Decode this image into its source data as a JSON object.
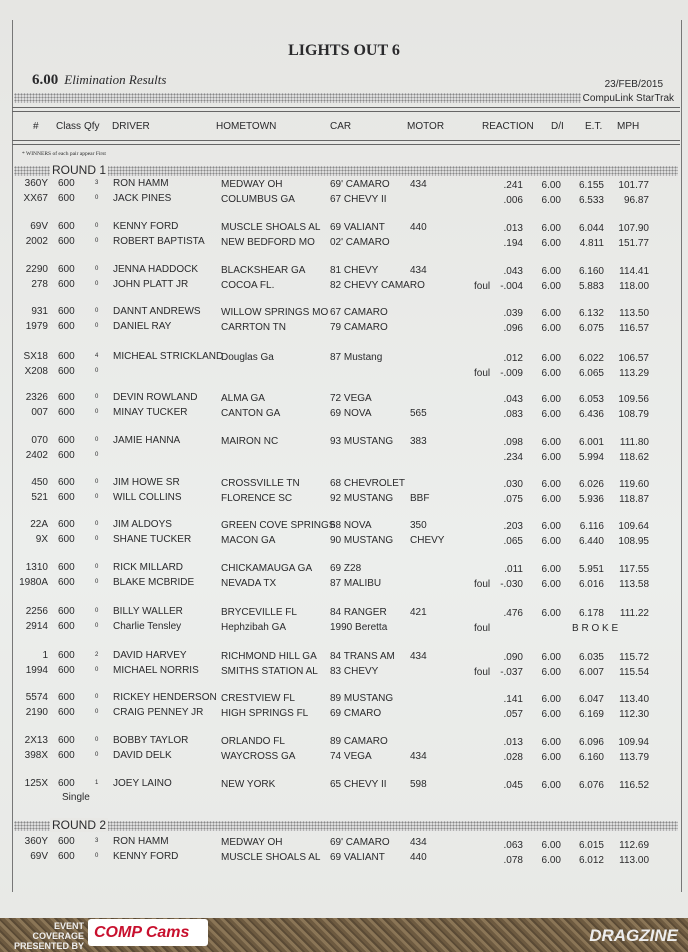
{
  "header": {
    "title": "LIGHTS OUT 6",
    "class": "6.00",
    "subtitle": "Elimination Results",
    "date": "23/FEB/2015",
    "system": "CompuLink  StarTrak"
  },
  "columns": [
    "#",
    "Class",
    "Qfy",
    "DRIVER",
    "HOMETOWN",
    "CAR",
    "MOTOR",
    "REACTION",
    "D/I",
    "E.T.",
    "MPH"
  ],
  "note": "* WINNERS of each pair appear First",
  "rounds": [
    {
      "label": "ROUND 1",
      "pairs": [
        [
          {
            "num": "360Y",
            "cls": "600",
            "qfy": "3",
            "driver": "RON HAMM",
            "hometown": "MEDWAY  OH",
            "car": "69' CAMARO",
            "motor": "434",
            "foul": "",
            "reaction": ".241",
            "di": "6.00",
            "et": "6.155",
            "mph": "101.77"
          },
          {
            "num": "XX67",
            "cls": "600",
            "qfy": "0",
            "driver": "JACK PINES",
            "hometown": "COLUMBUS  GA",
            "car": "67 CHEVY II",
            "motor": "",
            "foul": "",
            "reaction": ".006",
            "di": "6.00",
            "et": "6.533",
            "mph": "96.87"
          }
        ],
        [
          {
            "num": "69V",
            "cls": "600",
            "qfy": "0",
            "driver": "KENNY FORD",
            "hometown": "MUSCLE SHOALS AL",
            "car": "69 VALIANT",
            "motor": "440",
            "foul": "",
            "reaction": ".013",
            "di": "6.00",
            "et": "6.044",
            "mph": "107.90"
          },
          {
            "num": "2002",
            "cls": "600",
            "qfy": "0",
            "driver": "ROBERT BAPTISTA",
            "hometown": "NEW BEDFORD  MO",
            "car": "02' CAMARO",
            "motor": "",
            "foul": "",
            "reaction": ".194",
            "di": "6.00",
            "et": "4.811",
            "mph": "151.77"
          }
        ],
        [
          {
            "num": "2290",
            "cls": "600",
            "qfy": "0",
            "driver": "JENNA HADDOCK",
            "hometown": "BLACKSHEAR  GA",
            "car": "81 CHEVY",
            "motor": "434",
            "foul": "",
            "reaction": ".043",
            "di": "6.00",
            "et": "6.160",
            "mph": "114.41"
          },
          {
            "num": "278",
            "cls": "600",
            "qfy": "0",
            "driver": "JOHN PLATT JR",
            "hometown": "COCOA FL.",
            "car": "82 CHEVY CAMARO",
            "motor": "",
            "foul": "foul",
            "reaction": "-.004",
            "di": "6.00",
            "et": "5.883",
            "mph": "118.00"
          }
        ],
        [
          {
            "num": "931",
            "cls": "600",
            "qfy": "0",
            "driver": "DANNT ANDREWS",
            "hometown": "WILLOW SPRINGS  MO",
            "car": "67 CAMARO",
            "motor": "",
            "foul": "",
            "reaction": ".039",
            "di": "6.00",
            "et": "6.132",
            "mph": "113.50"
          },
          {
            "num": "1979",
            "cls": "600",
            "qfy": "0",
            "driver": "DANIEL RAY",
            "hometown": "CARRTON  TN",
            "car": "79 CAMARO",
            "motor": "",
            "foul": "",
            "reaction": ".096",
            "di": "6.00",
            "et": "6.075",
            "mph": "116.57"
          }
        ],
        [
          {
            "num": "SX18",
            "cls": "600",
            "qfy": "4",
            "driver": "MICHEAL STRICKLAND",
            "hometown": "Douglas Ga",
            "car": "87 Mustang",
            "motor": "",
            "foul": "",
            "reaction": ".012",
            "di": "6.00",
            "et": "6.022",
            "mph": "106.57"
          },
          {
            "num": "X208",
            "cls": "600",
            "qfy": "0",
            "driver": "",
            "hometown": "",
            "car": "",
            "motor": "",
            "foul": "foul",
            "reaction": "-.009",
            "di": "6.00",
            "et": "6.065",
            "mph": "113.29"
          }
        ],
        [
          {
            "num": "2326",
            "cls": "600",
            "qfy": "0",
            "driver": "DEVIN ROWLAND",
            "hometown": "ALMA  GA",
            "car": "72 VEGA",
            "motor": "",
            "foul": "",
            "reaction": ".043",
            "di": "6.00",
            "et": "6.053",
            "mph": "109.56"
          },
          {
            "num": "007",
            "cls": "600",
            "qfy": "0",
            "driver": "MINAY TUCKER",
            "hometown": "CANTON  GA",
            "car": "69 NOVA",
            "motor": "565",
            "foul": "",
            "reaction": ".083",
            "di": "6.00",
            "et": "6.436",
            "mph": "108.79"
          }
        ],
        [
          {
            "num": "070",
            "cls": "600",
            "qfy": "0",
            "driver": "JAMIE HANNA",
            "hometown": "MAIRON  NC",
            "car": "93 MUSTANG",
            "motor": "383",
            "foul": "",
            "reaction": ".098",
            "di": "6.00",
            "et": "6.001",
            "mph": "111.80"
          },
          {
            "num": "2402",
            "cls": "600",
            "qfy": "0",
            "driver": "",
            "hometown": "",
            "car": "",
            "motor": "",
            "foul": "",
            "reaction": ".234",
            "di": "6.00",
            "et": "5.994",
            "mph": "118.62"
          }
        ],
        [
          {
            "num": "450",
            "cls": "600",
            "qfy": "0",
            "driver": "JIM HOWE SR",
            "hometown": "CROSSVILLE TN",
            "car": "68 CHEVROLET",
            "motor": "",
            "foul": "",
            "reaction": ".030",
            "di": "6.00",
            "et": "6.026",
            "mph": "119.60"
          },
          {
            "num": "521",
            "cls": "600",
            "qfy": "0",
            "driver": "WILL COLLINS",
            "hometown": "FLORENCE SC",
            "car": "92 MUSTANG",
            "motor": "BBF",
            "foul": "",
            "reaction": ".075",
            "di": "6.00",
            "et": "5.936",
            "mph": "118.87"
          }
        ],
        [
          {
            "num": "22A",
            "cls": "600",
            "qfy": "0",
            "driver": "JIM ALDOYS",
            "hometown": "GREEN COVE SPRINGS",
            "car": "68 NOVA",
            "motor": "350",
            "foul": "",
            "reaction": ".203",
            "di": "6.00",
            "et": "6.116",
            "mph": "109.64"
          },
          {
            "num": "9X",
            "cls": "600",
            "qfy": "0",
            "driver": "SHANE TUCKER",
            "hometown": "MACON GA",
            "car": "90 MUSTANG",
            "motor": "CHEVY",
            "foul": "",
            "reaction": ".065",
            "di": "6.00",
            "et": "6.440",
            "mph": "108.95"
          }
        ],
        [
          {
            "num": "1310",
            "cls": "600",
            "qfy": "0",
            "driver": "RICK MILLARD",
            "hometown": "CHICKAMAUGA GA",
            "car": "69 Z28",
            "motor": "",
            "foul": "",
            "reaction": ".011",
            "di": "6.00",
            "et": "5.951",
            "mph": "117.55"
          },
          {
            "num": "1980A",
            "cls": "600",
            "qfy": "0",
            "driver": "BLAKE MCBRIDE",
            "hometown": "NEVADA TX",
            "car": "87 MALIBU",
            "motor": "",
            "foul": "foul",
            "reaction": "-.030",
            "di": "6.00",
            "et": "6.016",
            "mph": "113.58"
          }
        ],
        [
          {
            "num": "2256",
            "cls": "600",
            "qfy": "0",
            "driver": "BILLY WALLER",
            "hometown": "BRYCEVILLE  FL",
            "car": "84 RANGER",
            "motor": "421",
            "foul": "",
            "reaction": ".476",
            "di": "6.00",
            "et": "6.178",
            "mph": "111.22"
          },
          {
            "num": "2914",
            "cls": "600",
            "qfy": "0",
            "driver": "Charlie Tensley",
            "hometown": "Hephzibah  GA",
            "car": "1990 Beretta",
            "motor": "",
            "foul": "foul",
            "reaction": "",
            "di": "",
            "et": "",
            "mph": "",
            "status": "B R O K E"
          }
        ],
        [
          {
            "num": "1",
            "cls": "600",
            "qfy": "2",
            "driver": "DAVID HARVEY",
            "hometown": "RICHMOND HILL GA",
            "car": "84 TRANS AM",
            "motor": "434",
            "foul": "",
            "reaction": ".090",
            "di": "6.00",
            "et": "6.035",
            "mph": "115.72"
          },
          {
            "num": "1994",
            "cls": "600",
            "qfy": "0",
            "driver": "MICHAEL NORRIS",
            "hometown": "SMITHS STATION  AL",
            "car": "83 CHEVY",
            "motor": "",
            "foul": "foul",
            "reaction": "-.037",
            "di": "6.00",
            "et": "6.007",
            "mph": "115.54"
          }
        ],
        [
          {
            "num": "5574",
            "cls": "600",
            "qfy": "0",
            "driver": "RICKEY HENDERSON",
            "hometown": "CRESTVIEW FL",
            "car": "89 MUSTANG",
            "motor": "",
            "foul": "",
            "reaction": ".141",
            "di": "6.00",
            "et": "6.047",
            "mph": "113.40"
          },
          {
            "num": "2190",
            "cls": "600",
            "qfy": "0",
            "driver": "CRAIG PENNEY JR",
            "hometown": "HIGH SPRINGS FL",
            "car": "69 CMARO",
            "motor": "",
            "foul": "",
            "reaction": ".057",
            "di": "6.00",
            "et": "6.169",
            "mph": "112.30"
          }
        ],
        [
          {
            "num": "2X13",
            "cls": "600",
            "qfy": "0",
            "driver": "BOBBY TAYLOR",
            "hometown": "ORLANDO FL",
            "car": "89 CAMARO",
            "motor": "",
            "foul": "",
            "reaction": ".013",
            "di": "6.00",
            "et": "6.096",
            "mph": "109.94"
          },
          {
            "num": "398X",
            "cls": "600",
            "qfy": "0",
            "driver": "DAVID DELK",
            "hometown": "WAYCROSS  GA",
            "car": "74 VEGA",
            "motor": "434",
            "foul": "",
            "reaction": ".028",
            "di": "6.00",
            "et": "6.160",
            "mph": "113.79"
          }
        ],
        [
          {
            "num": "125X",
            "cls": "600",
            "qfy": "1",
            "driver": "JOEY LAINO",
            "hometown": "NEW YORK",
            "car": "65 CHEVY II",
            "motor": "598",
            "foul": "",
            "reaction": ".045",
            "di": "6.00",
            "et": "6.076",
            "mph": "116.52"
          },
          {
            "num": "",
            "cls": "",
            "qfy": "",
            "driver": "",
            "hometown": "",
            "car": "",
            "motor": "",
            "foul": "",
            "reaction": "",
            "di": "",
            "et": "",
            "mph": "",
            "single": "Single"
          }
        ]
      ]
    },
    {
      "label": "ROUND 2",
      "pairs": [
        [
          {
            "num": "360Y",
            "cls": "600",
            "qfy": "3",
            "driver": "RON HAMM",
            "hometown": "MEDWAY  OH",
            "car": "69' CAMARO",
            "motor": "434",
            "foul": "",
            "reaction": ".063",
            "di": "6.00",
            "et": "6.015",
            "mph": "112.69"
          },
          {
            "num": "69V",
            "cls": "600",
            "qfy": "0",
            "driver": "KENNY FORD",
            "hometown": "MUSCLE SHOALS AL",
            "car": "69 VALIANT",
            "motor": "440",
            "foul": "",
            "reaction": ".078",
            "di": "6.00",
            "et": "6.012",
            "mph": "113.00"
          }
        ]
      ]
    }
  ],
  "footer": {
    "event_coverage": "EVENT COVERAGE PRESENTED BY",
    "sponsor": "COMP Cams",
    "site": "DRAGZINE"
  },
  "colors": {
    "paper": "#e9e9e6",
    "text": "#2a2a2c",
    "comp_red": "#c8102e"
  }
}
